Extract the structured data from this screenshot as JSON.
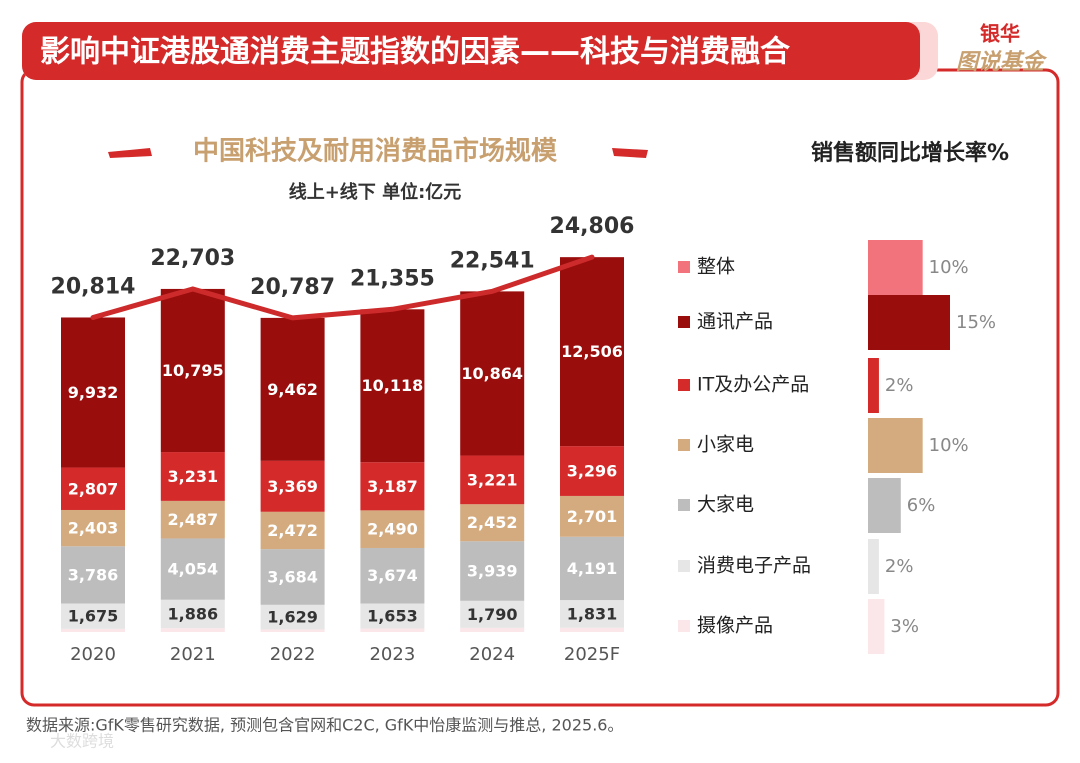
{
  "header": {
    "title": "影响中证港股通消费主题指数的因素——科技与消费融合",
    "brand_top": "银华",
    "brand_bottom": "图说基金"
  },
  "chart_data": {
    "type": "bar",
    "stacked": true,
    "title": "中国科技及耐用消费品市场规模",
    "subtitle": "线上+线下 单位:亿元",
    "categories": [
      "2020",
      "2021",
      "2022",
      "2023",
      "2024",
      "2025F"
    ],
    "ylim": [
      0,
      27000
    ],
    "series": [
      {
        "name": "整体",
        "type": "line",
        "color": "#f2737b",
        "line_color": "#cd2b2b",
        "values": [
          20814,
          22703,
          20787,
          21355,
          22541,
          24806
        ],
        "value_labels": [
          "20,814",
          "22,703",
          "20,787",
          "21,355",
          "22,541",
          "24,806"
        ]
      },
      {
        "name": "通讯产品",
        "color": "#9a0d0d",
        "label_color": "#ffffff",
        "values": [
          9932,
          10795,
          9462,
          10118,
          10864,
          12506
        ],
        "value_labels": [
          "9,932",
          "10,795",
          "9,462",
          "10,118",
          "10,864",
          "12,506"
        ]
      },
      {
        "name": "IT及办公产品",
        "color": "#d42a2a",
        "label_color": "#ffffff",
        "values": [
          2807,
          3231,
          3369,
          3187,
          3221,
          3296
        ],
        "value_labels": [
          "2,807",
          "3,231",
          "3,369",
          "3,187",
          "3,221",
          "3,296"
        ]
      },
      {
        "name": "小家电",
        "color": "#d4ab7e",
        "label_color": "#ffffff",
        "values": [
          2403,
          2487,
          2472,
          2490,
          2452,
          2701
        ],
        "value_labels": [
          "2,403",
          "2,487",
          "2,472",
          "2,490",
          "2,452",
          "2,701"
        ]
      },
      {
        "name": "大家电",
        "color": "#bdbdbd",
        "label_color": "#ffffff",
        "values": [
          3786,
          4054,
          3684,
          3674,
          3939,
          4191
        ],
        "value_labels": [
          "3,786",
          "4,054",
          "3,684",
          "3,674",
          "3,939",
          "4,191"
        ]
      },
      {
        "name": "消费电子产品",
        "color": "#e6e6e6",
        "label_color": "#333333",
        "values": [
          1675,
          1886,
          1629,
          1653,
          1790,
          1831
        ],
        "value_labels": [
          "1,675",
          "1,886",
          "1,629",
          "1,653",
          "1,790",
          "1,831"
        ]
      },
      {
        "name": "摄像产品",
        "color": "#fbe6ea",
        "values": [
          211,
          250,
          171,
          233,
          275,
          281
        ]
      }
    ],
    "growth": {
      "title": "销售额同比增长率%",
      "values": [
        10,
        15,
        2,
        10,
        6,
        2,
        3
      ],
      "value_labels": [
        "10%",
        "15%",
        "2%",
        "10%",
        "6%",
        "2%",
        "3%"
      ],
      "xlim": [
        0,
        15
      ]
    }
  },
  "footer": {
    "source": "数据来源:GfK零售研究数据, 预测包含官网和C2C, GfK中怡康监测与推总, 2025.6。",
    "watermark": "大数跨境"
  }
}
